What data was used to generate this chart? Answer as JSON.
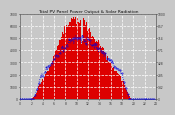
{
  "title_left": "Total PV Panel Power Output",
  "title_right": "& Solar Radiation",
  "bg_color": "#c8c8c8",
  "plot_bg_color": "#c8c8c8",
  "bar_color": "#dd0000",
  "line_color": "#0000dd",
  "grid_color": "#ffffff",
  "n_bars": 144,
  "ylim_left": [
    0,
    7000
  ],
  "ylim_right": [
    0,
    1000
  ],
  "title_fontsize": 3.2,
  "tick_fontsize": 2.2,
  "label_color": "#333333"
}
